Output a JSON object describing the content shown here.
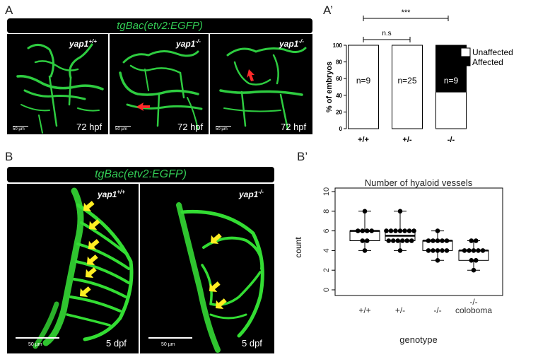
{
  "panels": {
    "A": {
      "label": "A",
      "banner": "tgBac(etv2:EGFP)",
      "images": [
        {
          "genotype_base": "yap1",
          "genotype_sup": "+/+",
          "stage": "72 hpf",
          "scale": "50 µm"
        },
        {
          "genotype_base": "yap1",
          "genotype_sup": "-/-",
          "stage": "72 hpf",
          "scale": "50 µm"
        },
        {
          "genotype_base": "yap1",
          "genotype_sup": "-/-",
          "stage": "72 hpf",
          "scale": "50 µm"
        }
      ]
    },
    "A_prime": {
      "label": "A’",
      "sig_top": "***",
      "sig_mid": "n.s"
    },
    "B": {
      "label": "B",
      "banner": "tgBac(etv2:EGFP)",
      "images": [
        {
          "genotype_base": "yap1",
          "genotype_sup": "+/+",
          "stage": "5 dpf",
          "scale": "50 µm"
        },
        {
          "genotype_base": "yap1",
          "genotype_sup": "-/-",
          "stage": "5 dpf",
          "scale": "50 µm"
        }
      ]
    },
    "B_prime": {
      "label": "B’"
    }
  },
  "chart_data": [
    {
      "type": "bar",
      "stacked": true,
      "title": "",
      "ylabel": "% of embryos",
      "xlabel": "",
      "categories": [
        "+/+",
        "+/-",
        "-/-"
      ],
      "series": [
        {
          "name": "Unaffected",
          "values": [
            100,
            100,
            44
          ],
          "color": "#ffffff"
        },
        {
          "name": "Affected",
          "values": [
            0,
            0,
            56
          ],
          "color": "#000000"
        }
      ],
      "bar_labels": [
        "n=9",
        "n=25",
        "n=9"
      ],
      "ylim": [
        0,
        100
      ],
      "yticks": [
        0,
        20,
        40,
        60,
        80,
        100
      ],
      "legend_position": "right"
    },
    {
      "type": "box",
      "title": "Number of hyaloid vessels",
      "xlabel": "genotype",
      "ylabel": "count",
      "categories": [
        "+/+",
        "+/-",
        "-/-",
        "-/-\ncoloboma"
      ],
      "ylim": [
        0,
        10
      ],
      "yticks": [
        0,
        2,
        4,
        6,
        8,
        10
      ],
      "boxes": [
        {
          "q1": 5,
          "median": 6,
          "q3": 6,
          "whisker_low": 4,
          "whisker_high": 8,
          "points": [
            8,
            6,
            6,
            6,
            6,
            5,
            5,
            4
          ]
        },
        {
          "q1": 5,
          "median": 5.5,
          "q3": 6,
          "whisker_low": 4,
          "whisker_high": 8,
          "points": [
            8,
            6,
            6,
            6,
            6,
            6,
            6,
            6,
            5,
            5,
            5,
            5,
            5,
            5,
            4
          ]
        },
        {
          "q1": 4,
          "median": 5,
          "q3": 5,
          "whisker_low": 3,
          "whisker_high": 6,
          "points": [
            6,
            5,
            5,
            5,
            5,
            5,
            4,
            4,
            4,
            4,
            4,
            3
          ]
        },
        {
          "q1": 3,
          "median": 4,
          "q3": 4,
          "whisker_low": 2,
          "whisker_high": 5,
          "points": [
            5,
            5,
            4,
            4,
            4,
            4,
            4,
            3,
            3,
            2
          ]
        }
      ]
    }
  ]
}
